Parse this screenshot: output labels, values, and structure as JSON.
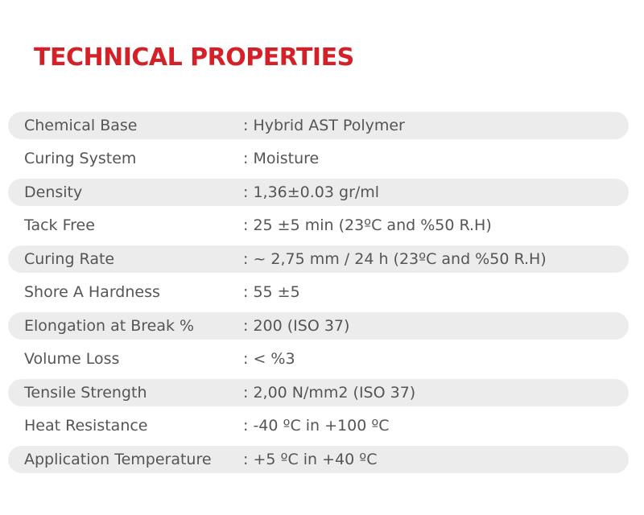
{
  "title": "TECHNICAL PROPERTIES",
  "colors": {
    "title": "#d62027",
    "row_shade": "#ececec",
    "text": "#555555"
  },
  "properties": [
    {
      "label": "Chemical Base",
      "value": ": Hybrid AST Polymer"
    },
    {
      "label": "Curing System",
      "value": ": Moisture"
    },
    {
      "label": "Density",
      "value": ": 1,36±0.03 gr/ml"
    },
    {
      "label": "Tack Free",
      "value": ": 25 ±5 min (23ºC and %50 R.H)"
    },
    {
      "label": "Curing Rate",
      "value": ": ~ 2,75 mm / 24 h (23ºC and %50 R.H)"
    },
    {
      "label": "Shore A Hardness",
      "value": ": 55 ±5"
    },
    {
      "label": "Elongation at Break %",
      "value": ": 200 (ISO 37)"
    },
    {
      "label": "Volume Loss",
      "value": ": < %3"
    },
    {
      "label": "Tensile Strength",
      "value": ": 2,00 N/mm2 (ISO 37)"
    },
    {
      "label": "Heat Resistance",
      "value": ": -40 ºC in +100 ºC"
    },
    {
      "label": "Application Temperature",
      "value": ": +5 ºC in +40 ºC"
    }
  ]
}
